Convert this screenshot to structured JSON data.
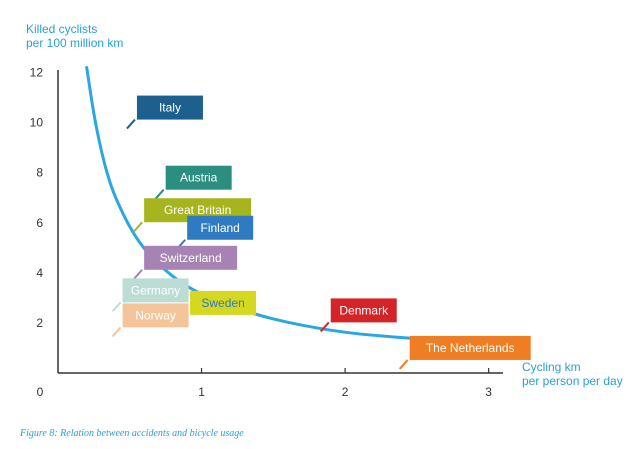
{
  "chart_data": {
    "type": "line",
    "ylabel": [
      "Killed cyclists",
      "per 100 million km"
    ],
    "xlabel": [
      "Cycling km",
      "per person per day"
    ],
    "caption": "Figure 8: Relation between accidents and bicycle usage",
    "xlim": [
      0,
      3.1
    ],
    "ylim": [
      0,
      12.5
    ],
    "x_ticks": [
      {
        "value": 0,
        "label": "0"
      },
      {
        "value": 1,
        "label": "1"
      },
      {
        "value": 2,
        "label": "2"
      },
      {
        "value": 3,
        "label": "3"
      }
    ],
    "y_ticks": [
      {
        "value": 2,
        "label": "2"
      },
      {
        "value": 4,
        "label": "4"
      },
      {
        "value": 6,
        "label": "6"
      },
      {
        "value": 8,
        "label": "8"
      },
      {
        "value": 10,
        "label": "10"
      },
      {
        "value": 12,
        "label": "12"
      }
    ],
    "curve": {
      "x": [
        0.2,
        0.25,
        0.3,
        0.35,
        0.4,
        0.5,
        0.6,
        0.7,
        0.8,
        0.9,
        1.0,
        1.2,
        1.4,
        1.6,
        1.8,
        2.0,
        2.2,
        2.5,
        2.8,
        3.1
      ],
      "y": [
        12.2,
        10.3,
        8.9,
        7.8,
        7.0,
        5.8,
        4.95,
        4.35,
        3.85,
        3.45,
        3.15,
        2.68,
        2.3,
        2.02,
        1.8,
        1.62,
        1.5,
        1.37,
        1.28,
        1.22
      ]
    },
    "labels": [
      {
        "name": "Italy",
        "color": "#1d5f8f",
        "x": 0.55,
        "y": 10.6
      },
      {
        "name": "Austria",
        "color": "#2a8f7e",
        "x": 0.75,
        "y": 7.8
      },
      {
        "name": "Great Britain",
        "color": "#a6b41e",
        "x": 0.6,
        "y": 6.5
      },
      {
        "name": "Finland",
        "color": "#2f7bc2",
        "x": 0.9,
        "y": 5.8
      },
      {
        "name": "Switzerland",
        "color": "#a783b4",
        "x": 0.6,
        "y": 4.6
      },
      {
        "name": "Germany",
        "color": "#bcdcd6",
        "x": 0.45,
        "y": 3.3
      },
      {
        "name": "Sweden",
        "color": "#d5d81e",
        "x": 0.92,
        "y": 2.8
      },
      {
        "name": "Norway",
        "color": "#f5c59a",
        "x": 0.45,
        "y": 2.3
      },
      {
        "name": "Denmark",
        "color": "#d42427",
        "x": 1.9,
        "y": 2.5
      },
      {
        "name": "The Netherlands",
        "color": "#ef7d23",
        "x": 2.45,
        "y": 1.0
      }
    ],
    "colors": {
      "curve": "#2aa7e0",
      "axis": "#333333",
      "text": "#2a9fd6"
    }
  }
}
